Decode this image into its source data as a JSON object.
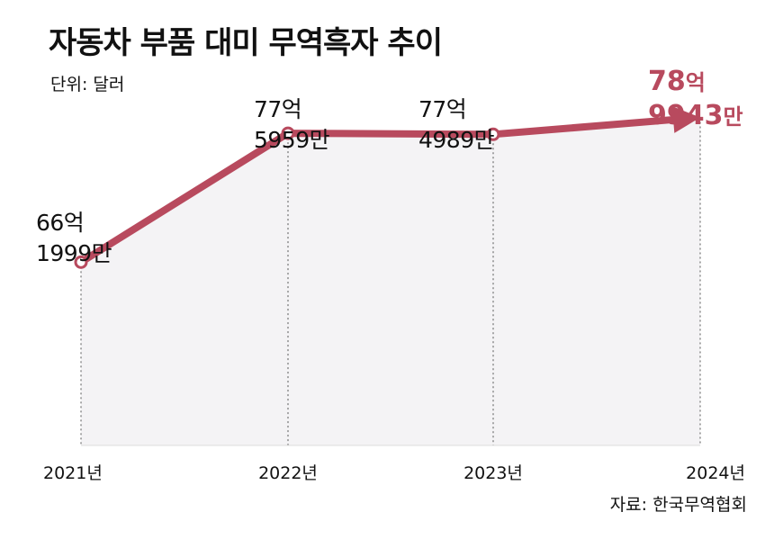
{
  "title": "자동차 부품 대미 무역흑자 추이",
  "unit_label": "단위: 달러",
  "source_label": "자료: 한국무역협회",
  "colors": {
    "line": "#b84a5e",
    "area": "#f4f3f5",
    "axis": "#555555"
  },
  "chart_data": {
    "type": "line",
    "title": "자동차 부품 대미 무역흑자 추이",
    "xlabel": "",
    "ylabel": "단위: 달러",
    "categories": [
      "2021년",
      "2022년",
      "2023년",
      "2024년"
    ],
    "values": [
      6619990000,
      7759590000,
      7749890000,
      7899430000
    ],
    "ylim": [
      5000000000,
      8500000000
    ],
    "data_labels": [
      {
        "line1": "66억",
        "line2": "1999만"
      },
      {
        "line1": "77억",
        "line2": "5959만"
      },
      {
        "line1": "77억",
        "line2": "4989만"
      },
      {
        "line1_num": "78",
        "line1_unit": "억",
        "line2_num": "9943",
        "line2_unit": "만"
      }
    ]
  }
}
